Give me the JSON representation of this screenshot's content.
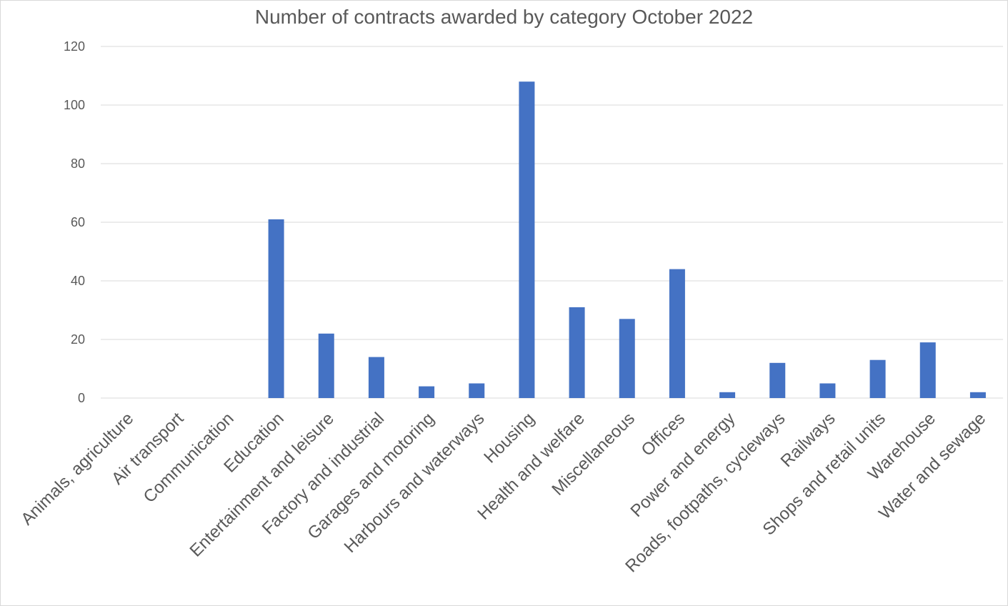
{
  "chart_data": {
    "type": "bar",
    "title": "Number of contracts awarded by category October 2022",
    "xlabel": "",
    "ylabel": "",
    "ylim": [
      0,
      120
    ],
    "yticks": [
      0,
      20,
      40,
      60,
      80,
      100,
      120
    ],
    "grid": true,
    "legend": "none",
    "bar_color": "#4472C4",
    "categories": [
      "Animals, agriculture",
      "Air transport",
      "Communication",
      "Education",
      "Entertainment and leisure",
      "Factory and industrial",
      "Garages and motoring",
      "Harbours and waterways",
      "Housing",
      "Health and welfare",
      "Miscellaneous",
      "Offices",
      "Power and energy",
      "Roads, footpaths, cycleways",
      "Railways",
      "Shops and retail units",
      "Warehouse",
      "Water and sewage"
    ],
    "values": [
      0,
      0,
      0,
      61,
      22,
      14,
      4,
      5,
      108,
      31,
      27,
      44,
      2,
      12,
      5,
      13,
      19,
      2
    ]
  }
}
